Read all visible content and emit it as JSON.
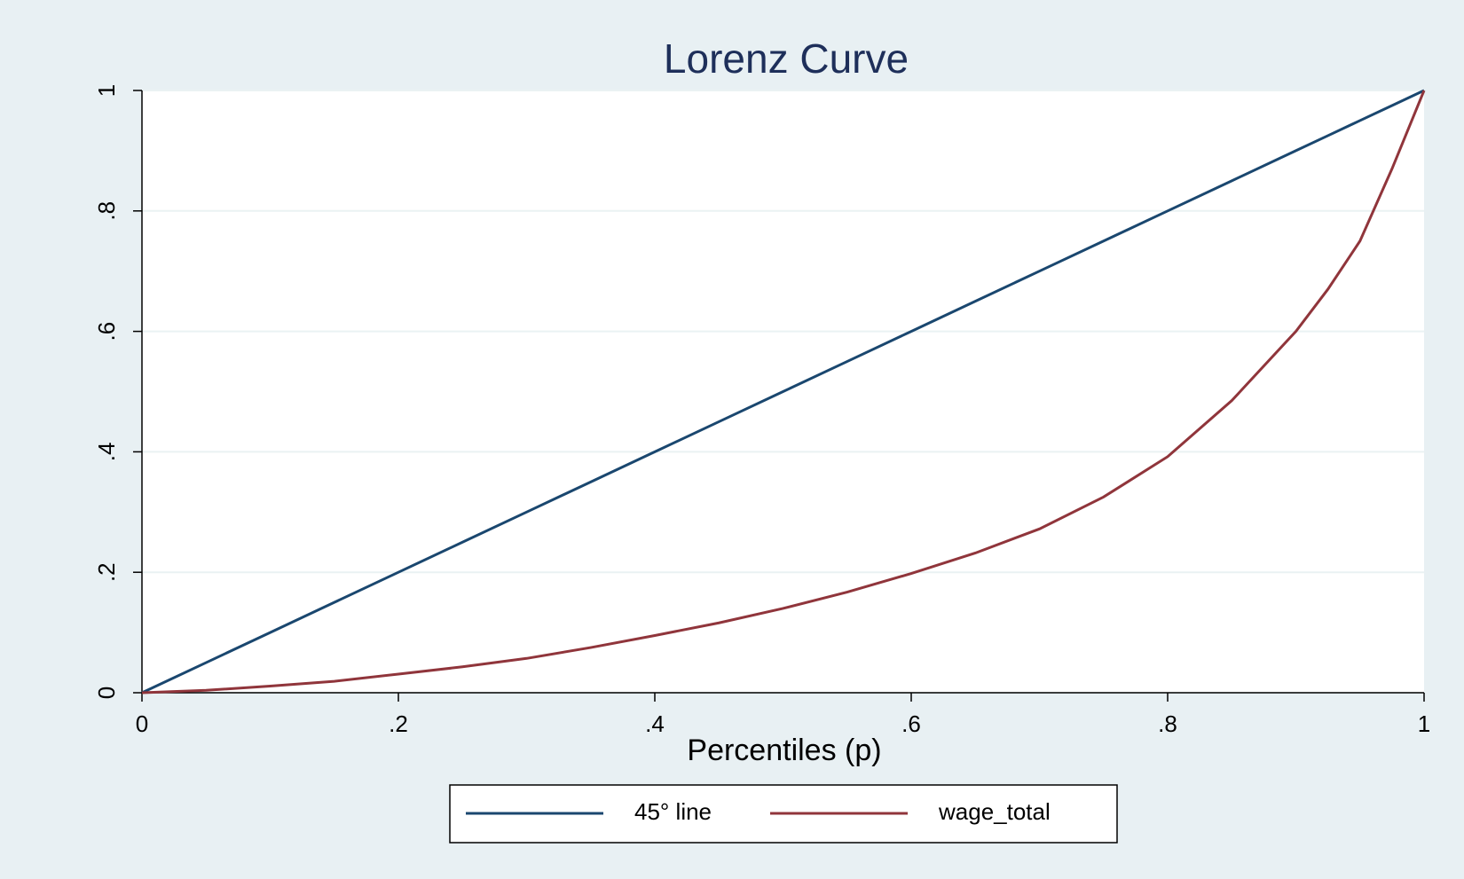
{
  "chart_data": {
    "type": "line",
    "title": "Lorenz Curve",
    "x_label": "Percentiles (p)",
    "x": [
      0,
      0.05,
      0.1,
      0.15,
      0.2,
      0.25,
      0.3,
      0.35,
      0.4,
      0.45,
      0.5,
      0.55,
      0.6,
      0.65,
      0.7,
      0.75,
      0.8,
      0.85,
      0.9,
      0.925,
      0.95,
      0.975,
      1
    ],
    "series": [
      {
        "name": "45° line",
        "color": "#1a476f",
        "values": [
          0,
          0.05,
          0.1,
          0.15,
          0.2,
          0.25,
          0.3,
          0.35,
          0.4,
          0.45,
          0.5,
          0.55,
          0.6,
          0.65,
          0.7,
          0.75,
          0.8,
          0.85,
          0.9,
          0.925,
          0.95,
          0.975,
          1
        ]
      },
      {
        "name": "wage_total",
        "color": "#90353b",
        "values": [
          0,
          0.004,
          0.011,
          0.019,
          0.031,
          0.043,
          0.057,
          0.075,
          0.095,
          0.116,
          0.14,
          0.167,
          0.198,
          0.232,
          0.272,
          0.325,
          0.392,
          0.485,
          0.6,
          0.67,
          0.75,
          0.87,
          1
        ]
      }
    ],
    "xlim": [
      0,
      1
    ],
    "ylim": [
      0,
      1
    ],
    "xticks": [
      0,
      {
        "value": 0.2,
        "label": ".2"
      },
      {
        "value": 0.4,
        "label": ".4"
      },
      {
        "value": 0.6,
        "label": ".6"
      },
      {
        "value": 0.8,
        "label": ".8"
      },
      1
    ],
    "yticks": [
      0,
      {
        "value": 0.2,
        "label": ".2"
      },
      {
        "value": 0.4,
        "label": ".4"
      },
      {
        "value": 0.6,
        "label": ".6"
      },
      {
        "value": 0.8,
        "label": ".8"
      },
      1
    ],
    "grid": true,
    "legend": "bottom"
  }
}
